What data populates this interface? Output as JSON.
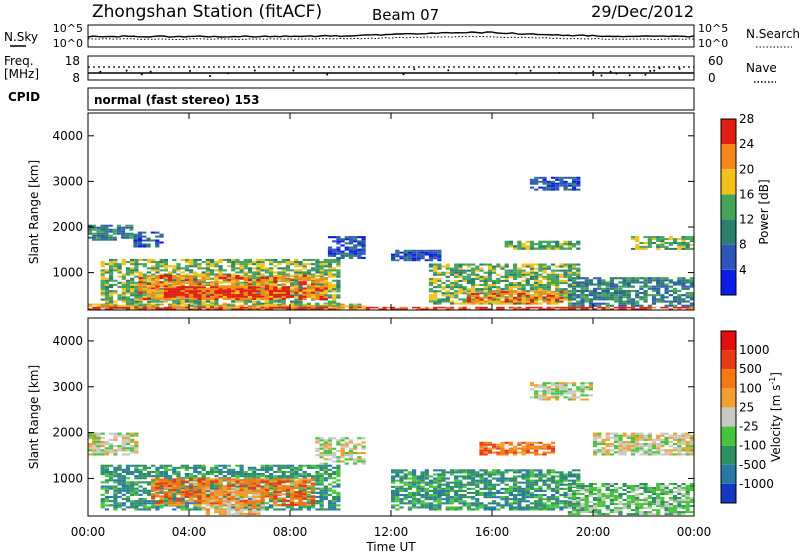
{
  "header": {
    "station": "Zhongshan Station (fitACF)",
    "beam": "Beam 07",
    "date": "29/Dec/2012"
  },
  "noise_panel": {
    "left_label": "N.Sky",
    "right_label": "N.Search",
    "tick_top": "10^5",
    "tick_bottom": "10^0"
  },
  "freq_panel": {
    "left_label_1": "Freq.",
    "left_label_2": "[MHz]",
    "right_label": "Nave",
    "left_ticks": [
      "18",
      "8"
    ],
    "right_ticks": [
      "60",
      "0"
    ]
  },
  "cpid": {
    "label": "CPID",
    "mode_text": "normal (fast stereo) 153"
  },
  "chart_data": [
    {
      "type": "heatmap",
      "name": "power",
      "ylabel": "Slant Range [km]",
      "xlabel": "",
      "yticks": [
        "1000",
        "2000",
        "3000",
        "4000"
      ],
      "ylim": [
        180,
        4500
      ],
      "xlim_hours": [
        0,
        24
      ],
      "colorbar": {
        "label": "Power [dB]",
        "ticks": [
          "4",
          "8",
          "12",
          "16",
          "20",
          "24",
          "28"
        ],
        "colors": [
          "#0a1ce6",
          "#2c55b8",
          "#2b7f6c",
          "#45a35a",
          "#f3c21a",
          "#f58a1a",
          "#e01f12"
        ]
      },
      "bands": [
        {
          "t0": 0.0,
          "t1": 1.8,
          "r0": 1700,
          "r1": 2050,
          "level": 2
        },
        {
          "t0": 1.8,
          "t1": 3.0,
          "r0": 1550,
          "r1": 1900,
          "level": 1
        },
        {
          "t0": 0.5,
          "t1": 10.0,
          "r0": 250,
          "r1": 1300,
          "level": 3
        },
        {
          "t0": 2.0,
          "t1": 9.5,
          "r0": 400,
          "r1": 950,
          "level": 5
        },
        {
          "t0": 3.0,
          "t1": 8.0,
          "r0": 450,
          "r1": 700,
          "level": 6
        },
        {
          "t0": 0.0,
          "t1": 11.0,
          "r0": 200,
          "r1": 320,
          "level": 4
        },
        {
          "t0": 9.5,
          "t1": 11.0,
          "r0": 1300,
          "r1": 1800,
          "level": 1
        },
        {
          "t0": 12.0,
          "t1": 14.0,
          "r0": 1250,
          "r1": 1500,
          "level": 1
        },
        {
          "t0": 13.5,
          "t1": 19.5,
          "r0": 300,
          "r1": 1200,
          "level": 3
        },
        {
          "t0": 15.0,
          "t1": 19.0,
          "r0": 300,
          "r1": 600,
          "level": 5
        },
        {
          "t0": 16.5,
          "t1": 19.5,
          "r0": 1500,
          "r1": 1700,
          "level": 3
        },
        {
          "t0": 17.5,
          "t1": 19.5,
          "r0": 2800,
          "r1": 3100,
          "level": 1
        },
        {
          "t0": 19.0,
          "t1": 24.0,
          "r0": 250,
          "r1": 900,
          "level": 2
        },
        {
          "t0": 21.5,
          "t1": 24.0,
          "r0": 1500,
          "r1": 1800,
          "level": 3
        },
        {
          "t0": 0.0,
          "t1": 24.0,
          "r0": 180,
          "r1": 250,
          "level": 6
        }
      ]
    },
    {
      "type": "heatmap",
      "name": "velocity",
      "ylabel": "Slant Range [km]",
      "xlabel": "Time UT",
      "yticks": [
        "1000",
        "2000",
        "3000",
        "4000"
      ],
      "ylim": [
        180,
        4500
      ],
      "xlim_hours": [
        0,
        24
      ],
      "xticks": [
        "00:00",
        "04:00",
        "08:00",
        "12:00",
        "16:00",
        "20:00",
        "00:00"
      ],
      "colorbar": {
        "label": "Velocity [m s",
        "label_sup": "-1",
        "label_end": "]",
        "ticks": [
          "1000",
          "500",
          "100",
          "25",
          "-25",
          "-100",
          "-500",
          "-1000"
        ],
        "colors": [
          "#1438c0",
          "#2a78a8",
          "#2e8f62",
          "#48c43c",
          "#c9c9c4",
          "#f0a030",
          "#f27a10",
          "#e63a14",
          "#e01010"
        ]
      },
      "bands": [
        {
          "t0": 0.0,
          "t1": 2.0,
          "r0": 1500,
          "r1": 2000,
          "level": 4
        },
        {
          "t0": 0.5,
          "t1": 10.0,
          "r0": 300,
          "r1": 1300,
          "level": 2
        },
        {
          "t0": 2.5,
          "t1": 9.0,
          "r0": 400,
          "r1": 1000,
          "level": 6
        },
        {
          "t0": 4.5,
          "t1": 7.0,
          "r0": 200,
          "r1": 800,
          "level": 5
        },
        {
          "t0": 9.0,
          "t1": 11.0,
          "r0": 1300,
          "r1": 1900,
          "level": 4
        },
        {
          "t0": 12.0,
          "t1": 19.5,
          "r0": 300,
          "r1": 1200,
          "level": 2
        },
        {
          "t0": 15.5,
          "t1": 18.5,
          "r0": 1500,
          "r1": 1800,
          "level": 6
        },
        {
          "t0": 17.5,
          "t1": 20.0,
          "r0": 2700,
          "r1": 3100,
          "level": 4
        },
        {
          "t0": 19.0,
          "t1": 24.0,
          "r0": 200,
          "r1": 900,
          "level": 3
        },
        {
          "t0": 20.0,
          "t1": 24.0,
          "r0": 1500,
          "r1": 2000,
          "level": 4
        }
      ]
    }
  ]
}
